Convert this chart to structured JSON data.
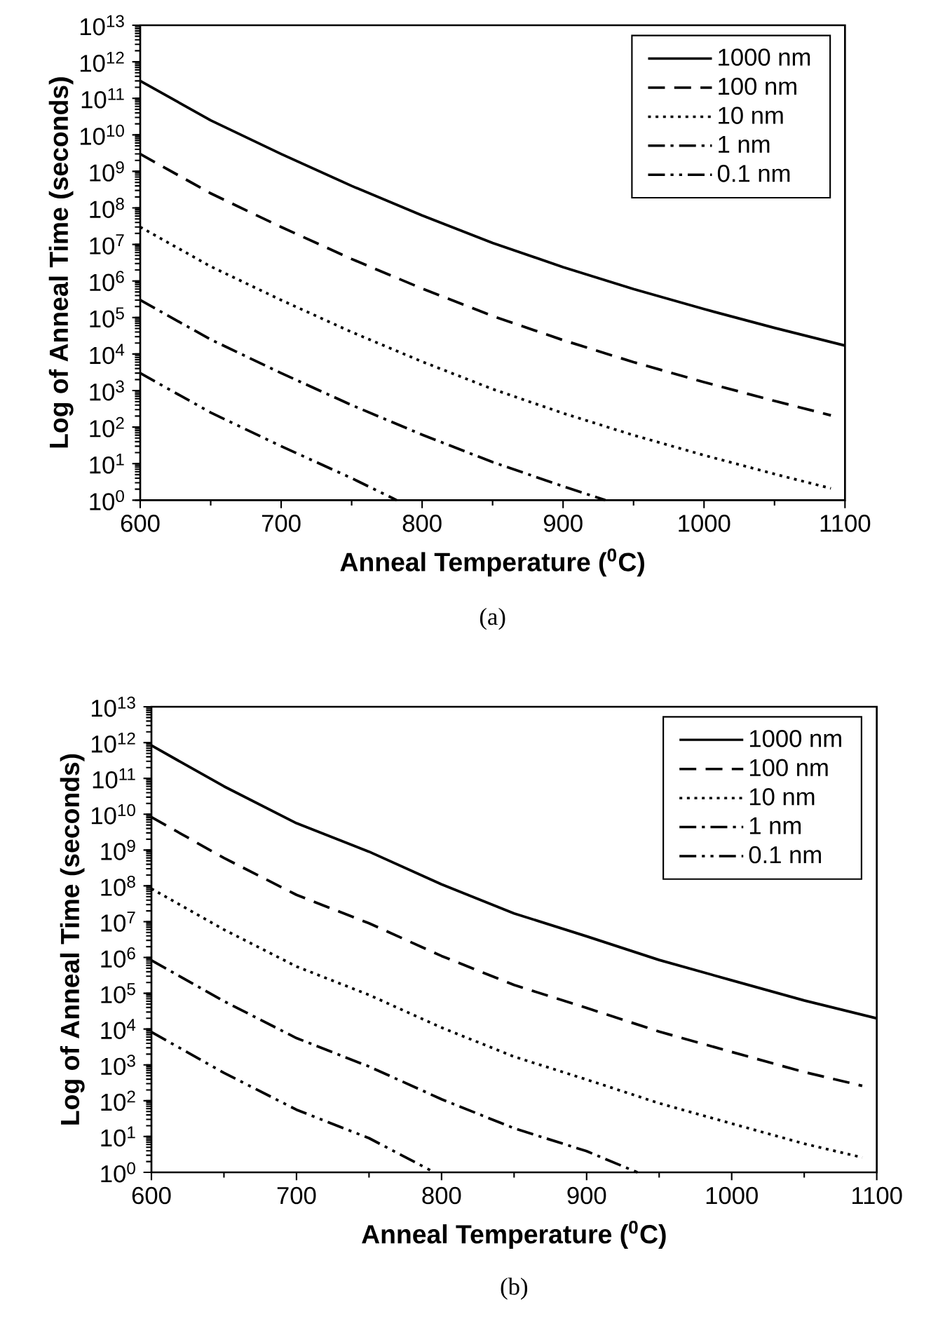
{
  "chart_data": [
    {
      "type": "line",
      "xlabel": "Anneal Temperature ($^{0}$C)",
      "ylabel": "Log of Anneal Time (seconds)",
      "annotations": [
        "(a)"
      ],
      "log": "y",
      "legend": "top right",
      "xlim": [
        600,
        1100
      ],
      "ylim": [
        1,
        10000000000000.0
      ],
      "xticks": [
        600,
        700,
        800,
        900,
        1000,
        1100
      ],
      "yticks": [
        {
          "value": 1,
          "label": "10$^{0}$"
        },
        {
          "value": 10.0,
          "label": "10$^{1}$"
        },
        {
          "value": 100.0,
          "label": "10$^{2}$"
        },
        {
          "value": 1000.0,
          "label": "10$^{3}$"
        },
        {
          "value": 10000.0,
          "label": "10$^{4}$"
        },
        {
          "value": 100000.0,
          "label": "10$^{5}$"
        },
        {
          "value": 1000000.0,
          "label": "10$^{6}$"
        },
        {
          "value": 10000000.0,
          "label": "10$^{7}$"
        },
        {
          "value": 100000000.0,
          "label": "10$^{8}$"
        },
        {
          "value": 1000000000.0,
          "label": "10$^{9}$"
        },
        {
          "value": 10000000000.0,
          "label": "10$^{10}$"
        },
        {
          "value": 100000000000.0,
          "label": "10$^{11}$"
        },
        {
          "value": 1000000000000.0,
          "label": "10$^{12}$"
        },
        {
          "value": 10000000000000.0,
          "label": "10$^{13}$"
        }
      ],
      "series": [
        {
          "name": "1000 nm",
          "color": "#000000",
          "line_style": "solid",
          "x": [
            600,
            650,
            700,
            750,
            800,
            850,
            900,
            950,
            1000,
            1050,
            1100
          ],
          "values": [
            300000000000.0,
            25000000000.0,
            3000000000.0,
            400000000.0,
            62000000.0,
            11000000.0,
            2400000.0,
            600000.0,
            170000.0,
            52000.0,
            17000.0
          ]
        },
        {
          "name": "100 nm",
          "color": "#000000",
          "line_style": "dashed",
          "x": [
            600,
            650,
            700,
            750,
            800,
            850,
            900,
            950,
            1000,
            1050,
            1090
          ],
          "values": [
            3000000000.0,
            250000000.0,
            30000000.0,
            4000000.0,
            620000.0,
            110000.0,
            24000.0,
            6000.0,
            1700.0,
            520,
            210
          ]
        },
        {
          "name": "10 nm",
          "color": "#000000",
          "line_style": "dotted",
          "x": [
            600,
            650,
            700,
            750,
            800,
            850,
            900,
            950,
            1000,
            1050,
            1090
          ],
          "values": [
            30000000.0,
            2500000.0,
            300000.0,
            40000.0,
            6200.0,
            1100.0,
            240,
            60,
            17,
            5.2,
            2.1
          ]
        },
        {
          "name": "1 nm",
          "color": "#000000",
          "line_style": "dashdot",
          "x": [
            600,
            650,
            700,
            750,
            800,
            850,
            900,
            930
          ],
          "values": [
            300000.0,
            25000.0,
            3000.0,
            400,
            62,
            11,
            2.4,
            1
          ]
        },
        {
          "name": "0.1 nm",
          "color": "#000000",
          "line_style": "dashdotdot",
          "x": [
            600,
            650,
            700,
            750,
            782
          ],
          "values": [
            3000.0,
            250,
            30,
            4,
            1
          ]
        }
      ]
    },
    {
      "type": "line",
      "xlabel": "Anneal Temperature ($^{0}$C)",
      "ylabel": "Log of Anneal Time (seconds)",
      "annotations": [
        "(b)"
      ],
      "log": "y",
      "legend": "top right",
      "xlim": [
        600,
        1100
      ],
      "ylim": [
        1,
        10000000000000.0
      ],
      "xticks": [
        600,
        700,
        800,
        900,
        1000,
        1100
      ],
      "yticks": [
        {
          "value": 1,
          "label": "10$^{0}$"
        },
        {
          "value": 10.0,
          "label": "10$^{1}$"
        },
        {
          "value": 100.0,
          "label": "10$^{2}$"
        },
        {
          "value": 1000.0,
          "label": "10$^{3}$"
        },
        {
          "value": 10000.0,
          "label": "10$^{4}$"
        },
        {
          "value": 100000.0,
          "label": "10$^{5}$"
        },
        {
          "value": 1000000.0,
          "label": "10$^{6}$"
        },
        {
          "value": 10000000.0,
          "label": "10$^{7}$"
        },
        {
          "value": 100000000.0,
          "label": "10$^{8}$"
        },
        {
          "value": 1000000000.0,
          "label": "10$^{9}$"
        },
        {
          "value": 10000000000.0,
          "label": "10$^{10}$"
        },
        {
          "value": 100000000000.0,
          "label": "10$^{11}$"
        },
        {
          "value": 1000000000000.0,
          "label": "10$^{12}$"
        },
        {
          "value": 10000000000000.0,
          "label": "10$^{13}$"
        }
      ],
      "series": [
        {
          "name": "1000 nm",
          "color": "#000000",
          "line_style": "solid",
          "x": [
            600,
            650,
            700,
            750,
            800,
            850,
            900,
            950,
            1000,
            1050,
            1100
          ],
          "values": [
            830000000000.0,
            60000000000.0,
            5600000000.0,
            900000000.0,
            110000000.0,
            17000000.0,
            3900000.0,
            850000.0,
            230000.0,
            63000.0,
            20000.0
          ]
        },
        {
          "name": "100 nm",
          "color": "#000000",
          "line_style": "dashed",
          "x": [
            600,
            650,
            700,
            750,
            800,
            850,
            900,
            950,
            1000,
            1050,
            1090
          ],
          "values": [
            8300000000.0,
            600000000.0,
            56000000.0,
            9000000.0,
            1100000.0,
            170000.0,
            39000.0,
            8500.0,
            2300.0,
            630,
            260
          ]
        },
        {
          "name": "10 nm",
          "color": "#000000",
          "line_style": "dotted",
          "x": [
            600,
            650,
            700,
            750,
            800,
            850,
            900,
            950,
            1000,
            1050,
            1090
          ],
          "values": [
            83000000.0,
            6000000.0,
            560000.0,
            90000.0,
            11000.0,
            1700.0,
            390,
            85,
            23,
            6.3,
            2.6
          ]
        },
        {
          "name": "1 nm",
          "color": "#000000",
          "line_style": "dashdot",
          "x": [
            600,
            650,
            700,
            750,
            800,
            850,
            900,
            935
          ],
          "values": [
            830000.0,
            60000.0,
            5600.0,
            900,
            110,
            17,
            3.9,
            1
          ]
        },
        {
          "name": "0.1 nm",
          "color": "#000000",
          "line_style": "dashdotdot",
          "x": [
            600,
            650,
            700,
            750,
            795
          ],
          "values": [
            8300.0,
            600,
            56,
            9,
            1
          ]
        }
      ]
    }
  ]
}
